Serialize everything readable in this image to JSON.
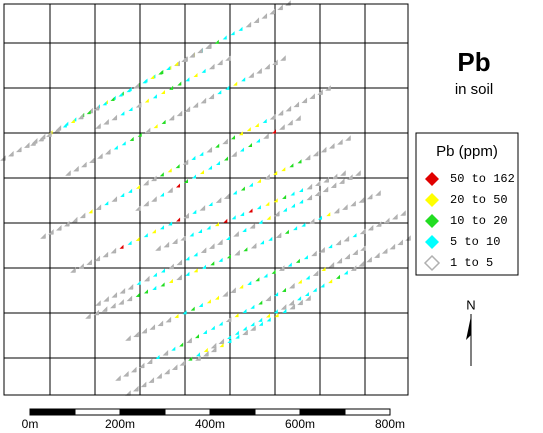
{
  "title": "Pb",
  "subtitle": "in soil",
  "legend": {
    "title": "Pb (ppm)",
    "items": [
      {
        "label": "50  to  162",
        "color": "#e00000"
      },
      {
        "label": "20  to  50",
        "color": "#ffff00"
      },
      {
        "label": "10  to  20",
        "color": "#22dd22"
      },
      {
        "label": "5  to  10",
        "color": "#00ffff"
      },
      {
        "label": "1  to  5",
        "color": "#b0b0b0"
      }
    ]
  },
  "scale_bar": {
    "labels": [
      "0m",
      "200m",
      "400m",
      "600m",
      "800m"
    ]
  },
  "north": "N"
}
